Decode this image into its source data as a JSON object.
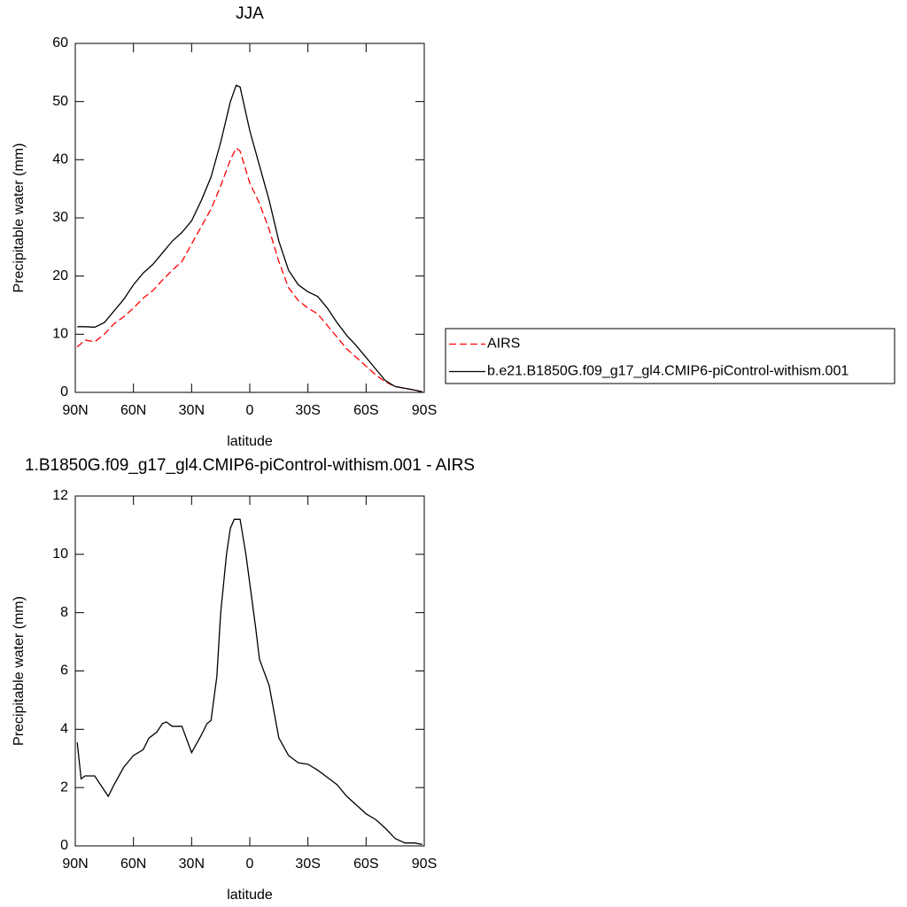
{
  "chart_data": [
    {
      "type": "line",
      "title": "JJA",
      "xlabel": "latitude",
      "ylabel": "Precipitable water (mm)",
      "x": [
        89,
        85,
        80,
        75,
        70,
        65,
        60,
        55,
        50,
        45,
        40,
        35,
        30,
        25,
        20,
        15,
        10,
        7,
        5,
        0,
        -5,
        -10,
        -15,
        -20,
        -25,
        -30,
        -35,
        -40,
        -45,
        -50,
        -55,
        -60,
        -65,
        -70,
        -75,
        -80,
        -85,
        -89
      ],
      "series": [
        {
          "name": "AIRS",
          "color": "#ff0000",
          "linestyle": "dashed",
          "values": [
            7.8,
            9,
            8.7,
            10,
            11.8,
            13,
            14.5,
            16.2,
            17.5,
            19.3,
            21,
            22.5,
            25.5,
            28.5,
            31.5,
            35.5,
            40,
            42,
            41.5,
            36,
            32.5,
            28,
            22.5,
            18,
            15.8,
            14.5,
            13.5,
            11.5,
            9.5,
            7.5,
            6,
            4.5,
            3,
            1.8,
            1,
            0.7,
            0.4,
            0.1
          ]
        },
        {
          "name": "b.e21.B1850G.f09_g17_gl4.CMIP6-piControl-withism.001",
          "color": "#000000",
          "linestyle": "solid",
          "values": [
            11.3,
            11.3,
            11.2,
            12,
            14,
            16,
            18.5,
            20.5,
            22,
            24,
            26,
            27.5,
            29.5,
            33,
            37,
            43,
            50,
            52.8,
            52.5,
            45,
            39,
            33,
            26,
            21,
            18.5,
            17.3,
            16.5,
            14.5,
            12,
            9.8,
            8,
            6,
            4,
            2,
            1,
            0.7,
            0.4,
            0.1
          ]
        }
      ],
      "xlim": [
        90,
        -90
      ],
      "xticks": [
        {
          "value": 90,
          "label": "90N"
        },
        {
          "value": 60,
          "label": "60N"
        },
        {
          "value": 30,
          "label": "30N"
        },
        0,
        {
          "value": -30,
          "label": "30S"
        },
        {
          "value": -60,
          "label": "60S"
        },
        {
          "value": -90,
          "label": "90S"
        }
      ],
      "ylim": [
        0,
        60
      ],
      "yticks": [
        0,
        10,
        20,
        30,
        40,
        50,
        60
      ],
      "legend": "right"
    },
    {
      "type": "line",
      "title": "1.B1850G.f09_g17_gl4.CMIP6-piControl-withism.001 - AIRS",
      "xlabel": "latitude",
      "ylabel": "Precipitable water (mm)",
      "x": [
        89,
        87,
        85,
        80,
        75,
        73,
        70,
        65,
        60,
        55,
        52,
        48,
        45,
        43,
        40,
        35,
        30,
        25,
        22,
        20,
        17,
        15,
        12,
        10,
        8,
        5,
        2,
        0,
        -3,
        -5,
        -10,
        -15,
        -20,
        -25,
        -30,
        -35,
        -40,
        -45,
        -50,
        -55,
        -60,
        -65,
        -70,
        -75,
        -80,
        -85,
        -89
      ],
      "series": [
        {
          "color": "#000000",
          "linestyle": "solid",
          "values": [
            3.55,
            2.3,
            2.4,
            2.4,
            1.9,
            1.7,
            2.1,
            2.7,
            3.1,
            3.3,
            3.7,
            3.9,
            4.2,
            4.25,
            4.1,
            4.1,
            3.2,
            3.8,
            4.2,
            4.3,
            5.8,
            8,
            10,
            10.9,
            11.2,
            11.2,
            10,
            9,
            7.5,
            6.4,
            5.5,
            3.7,
            3.1,
            2.85,
            2.8,
            2.6,
            2.35,
            2.1,
            1.7,
            1.4,
            1.1,
            0.9,
            0.6,
            0.25,
            0.1,
            0.1,
            0.05
          ]
        }
      ],
      "xlim": [
        90,
        -90
      ],
      "xticks": [
        {
          "value": 90,
          "label": "90N"
        },
        {
          "value": 60,
          "label": "60N"
        },
        {
          "value": 30,
          "label": "30N"
        },
        0,
        {
          "value": -30,
          "label": "30S"
        },
        {
          "value": -60,
          "label": "60S"
        },
        {
          "value": -90,
          "label": "90S"
        }
      ],
      "ylim": [
        0,
        12
      ],
      "yticks": [
        0,
        2,
        4,
        6,
        8,
        10,
        12
      ]
    }
  ]
}
